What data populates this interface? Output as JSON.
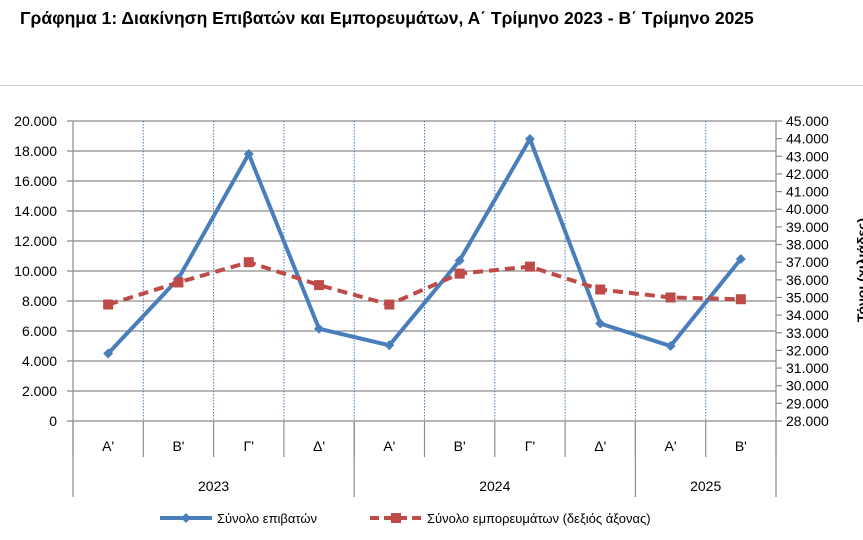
{
  "chart_data": {
    "type": "line",
    "title": "Γράφημα 1: Διακίνηση Επιβατών και Εμπορευμάτων, Α΄ Τρίμηνο 2023 - Β΄ Τρίμηνο 2025",
    "categories": [
      "Α'",
      "Β'",
      "Γ'",
      "Δ'",
      "Α'",
      "Β'",
      "Γ'",
      "Δ'",
      "Α'",
      "Β'"
    ],
    "years": [
      {
        "label": "2023",
        "span": 4
      },
      {
        "label": "2024",
        "span": 4
      },
      {
        "label": "2025",
        "span": 2
      }
    ],
    "left_axis": {
      "min": 0,
      "max": 20000,
      "step": 2000,
      "ticks": [
        "0",
        "2.000",
        "4.000",
        "6.000",
        "8.000",
        "10.000",
        "12.000",
        "14.000",
        "16.000",
        "18.000",
        "20.000"
      ]
    },
    "right_axis": {
      "min": 28000,
      "max": 45000,
      "step": 1000,
      "label": "Τόνοι (χιλιάδες)",
      "ticks": [
        "28.000",
        "29.000",
        "30.000",
        "31.000",
        "32.000",
        "33.000",
        "34.000",
        "35.000",
        "36.000",
        "37.000",
        "38.000",
        "39.000",
        "40.000",
        "41.000",
        "42.000",
        "43.000",
        "44.000",
        "45.000"
      ]
    },
    "grid": true,
    "legend_position": "bottom",
    "series": [
      {
        "name": "Σύνολο επιβατών",
        "axis": "left",
        "color": "#4a7ebb",
        "values": [
          4500,
          9500,
          17800,
          6150,
          5050,
          10700,
          18800,
          6500,
          5000,
          10800
        ]
      },
      {
        "name": "Σύνολο εμπορευμάτων (δεξιός άξονας)",
        "axis": "right",
        "color": "#be4b48",
        "values": [
          34600,
          35850,
          37000,
          35700,
          34600,
          36350,
          36750,
          35450,
          35000,
          34900
        ]
      }
    ]
  }
}
